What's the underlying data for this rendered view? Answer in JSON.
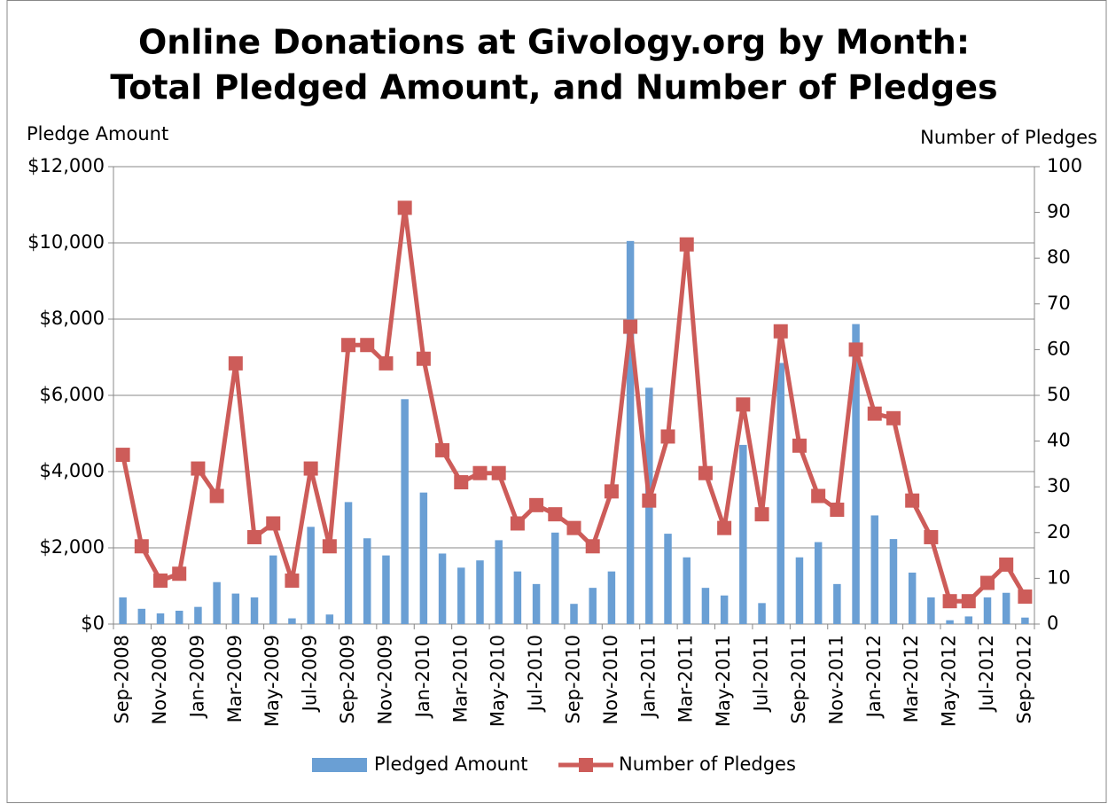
{
  "chart_data": {
    "type": "bar_line",
    "title": "Online Donations at Givology.org by Month:",
    "subtitle": "Total Pledged Amount, and Number of Pledges",
    "y_label": "Pledge Amount",
    "y2_label": "Number of Pledges",
    "categories": [
      "Sep-2008",
      null,
      "Nov-2008",
      null,
      "Jan-2009",
      null,
      "Mar-2009",
      null,
      "May-2009",
      null,
      "Jul-2009",
      null,
      "Sep-2009",
      null,
      "Nov-2009",
      null,
      "Jan-2010",
      null,
      "Mar-2010",
      null,
      "May-2010",
      null,
      "Jul-2010",
      null,
      "Sep-2010",
      null,
      "Nov-2010",
      null,
      "Jan-2011",
      null,
      "Mar-2011",
      null,
      "May-2011",
      null,
      "Jul-2011",
      null,
      "Sep-2011",
      null,
      "Nov-2011",
      null,
      "Jan-2012",
      null,
      "Mar-2012",
      null,
      "May-2012",
      null,
      "Jul-2012",
      null,
      "Sep-2012"
    ],
    "series": [
      {
        "name": "Pledged Amount",
        "type": "bar",
        "color": "#6a9fd4",
        "values": [
          700,
          400,
          280,
          350,
          450,
          1100,
          800,
          700,
          1800,
          150,
          2550,
          250,
          3200,
          2250,
          1800,
          5900,
          3450,
          1850,
          1480,
          1670,
          2200,
          1380,
          1050,
          2400,
          530,
          950,
          1380,
          10050,
          6200,
          2370,
          1750,
          950,
          750,
          4700,
          550,
          6850,
          1750,
          2150,
          1050,
          7870,
          2850,
          2230,
          1350,
          700,
          100,
          200,
          700,
          820,
          170
        ]
      },
      {
        "name": "Number of Pledges",
        "type": "line",
        "axis": "y2",
        "color": "#cd5c59",
        "values": [
          37,
          17,
          9.5,
          11,
          34,
          28,
          57,
          19,
          22,
          9.5,
          34,
          17,
          61,
          61,
          57,
          91,
          58,
          38,
          31,
          33,
          33,
          22,
          26,
          24,
          21,
          17,
          29,
          65,
          27,
          41,
          83,
          33,
          21,
          48,
          24,
          64,
          39,
          28,
          25,
          60,
          46,
          45,
          27,
          19,
          5,
          5,
          9,
          13,
          6
        ]
      }
    ],
    "ylim": [
      0,
      12000
    ],
    "yticks": [
      {
        "value": 0,
        "label": "$0"
      },
      {
        "value": 2000,
        "label": "$2,000"
      },
      {
        "value": 4000,
        "label": "$4,000"
      },
      {
        "value": 6000,
        "label": "$6,000"
      },
      {
        "value": 8000,
        "label": "$8,000"
      },
      {
        "value": 10000,
        "label": "$10,000"
      },
      {
        "value": 12000,
        "label": "$12,000"
      }
    ],
    "y2lim": [
      0,
      100
    ],
    "y2ticks": [
      0,
      10,
      20,
      30,
      40,
      50,
      60,
      70,
      80,
      90,
      100
    ],
    "grid": true,
    "legend": "bottom"
  }
}
